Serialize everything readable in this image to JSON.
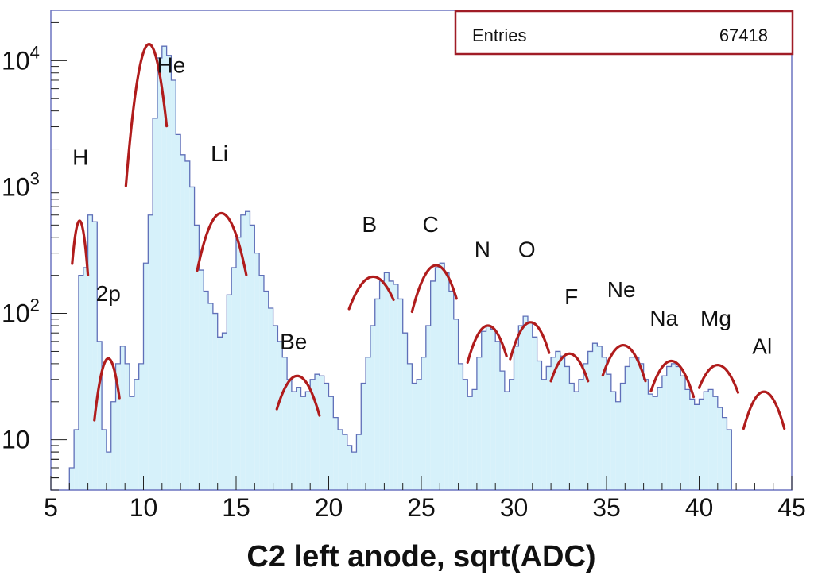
{
  "chart_data": {
    "type": "histogram",
    "title": "",
    "xlabel": "C2 left anode, sqrt(ADC)",
    "ylabel": "",
    "xlim": [
      5,
      45
    ],
    "ylim": [
      4,
      25000
    ],
    "yscale": "log",
    "grid": false,
    "legend": "none",
    "x_ticks": [
      5,
      10,
      15,
      20,
      25,
      30,
      35,
      40,
      45
    ],
    "x_tick_labels": [
      "5",
      "10",
      "15",
      "20",
      "25",
      "30",
      "35",
      "40",
      "45"
    ],
    "y_ticks": [
      10,
      100,
      1000,
      10000
    ],
    "y_tick_labels": [
      {
        "base": "10",
        "exp": ""
      },
      {
        "base": "10",
        "exp": "2"
      },
      {
        "base": "10",
        "exp": "3"
      },
      {
        "base": "10",
        "exp": "4"
      }
    ],
    "stats_box": {
      "label": "Entries",
      "value": "67418"
    },
    "colors": {
      "fill": "#d6f1fa",
      "histogram_line": "#5f6fb8",
      "fit": "#b01c1c",
      "stats_border": "#a01c26",
      "frame": "#6c74c0"
    },
    "histogram": {
      "bin_width": 0.25,
      "x_start": 6.0,
      "values": [
        6,
        12,
        200,
        230,
        600,
        530,
        60,
        12,
        8,
        20,
        40,
        55,
        40,
        22,
        30,
        40,
        250,
        600,
        3500,
        10500,
        13000,
        11000,
        7000,
        2600,
        1800,
        1600,
        1000,
        500,
        220,
        150,
        120,
        100,
        65,
        70,
        140,
        230,
        400,
        600,
        640,
        500,
        300,
        200,
        150,
        110,
        80,
        60,
        45,
        30,
        24,
        26,
        22,
        24,
        30,
        33,
        32,
        28,
        22,
        15,
        12,
        11,
        9,
        8,
        11,
        28,
        45,
        80,
        130,
        180,
        210,
        180,
        170,
        130,
        70,
        40,
        28,
        30,
        45,
        80,
        180,
        230,
        250,
        210,
        150,
        90,
        40,
        30,
        22,
        25,
        45,
        72,
        80,
        75,
        60,
        35,
        24,
        30,
        55,
        80,
        95,
        85,
        65,
        42,
        30,
        38,
        45,
        50,
        46,
        38,
        28,
        24,
        30,
        40,
        50,
        58,
        55,
        45,
        33,
        24,
        20,
        28,
        38,
        45,
        45,
        40,
        30,
        23,
        22,
        26,
        32,
        38,
        40,
        38,
        32,
        25,
        21,
        19,
        21,
        24,
        25,
        22,
        18,
        15,
        12
      ]
    },
    "fits": [
      {
        "species": "H",
        "mu": 6.55,
        "sigma": 0.32,
        "peak": 540,
        "x_from": 6.15,
        "x_to": 7.0
      },
      {
        "species": "2p",
        "mu": 8.1,
        "sigma": 0.5,
        "peak": 44,
        "x_from": 7.35,
        "x_to": 8.7
      },
      {
        "species": "He",
        "mu": 10.3,
        "sigma": 0.55,
        "peak": 13500,
        "x_from": 9.05,
        "x_to": 11.25
      },
      {
        "species": "Li",
        "mu": 14.2,
        "sigma": 0.9,
        "peak": 620,
        "x_from": 12.9,
        "x_to": 15.55
      },
      {
        "species": "Be",
        "mu": 18.3,
        "sigma": 1.0,
        "peak": 32,
        "x_from": 17.2,
        "x_to": 19.5
      },
      {
        "species": "B",
        "mu": 22.4,
        "sigma": 1.2,
        "peak": 195,
        "x_from": 21.1,
        "x_to": 23.5
      },
      {
        "species": "C",
        "mu": 25.8,
        "sigma": 1.0,
        "peak": 240,
        "x_from": 24.5,
        "x_to": 26.9
      },
      {
        "species": "N",
        "mu": 28.6,
        "sigma": 0.95,
        "peak": 80,
        "x_from": 27.5,
        "x_to": 29.6
      },
      {
        "species": "O",
        "mu": 30.9,
        "sigma": 0.95,
        "peak": 85,
        "x_from": 29.8,
        "x_to": 31.9
      },
      {
        "species": "F",
        "mu": 33.0,
        "sigma": 1.0,
        "peak": 48,
        "x_from": 32.0,
        "x_to": 34.0
      },
      {
        "species": "Ne",
        "mu": 35.9,
        "sigma": 1.05,
        "peak": 56,
        "x_from": 34.8,
        "x_to": 37.1
      },
      {
        "species": "Na",
        "mu": 38.5,
        "sigma": 1.05,
        "peak": 42,
        "x_from": 37.4,
        "x_to": 39.7
      },
      {
        "species": "Mg",
        "mu": 41.0,
        "sigma": 1.1,
        "peak": 39,
        "x_from": 40.0,
        "x_to": 42.1
      },
      {
        "species": "Al",
        "mu": 43.5,
        "sigma": 0.95,
        "peak": 24,
        "x_from": 42.4,
        "x_to": 44.6
      }
    ],
    "annotations": [
      {
        "text": "H",
        "x": 6.6,
        "y": 1500
      },
      {
        "text": "2p",
        "x": 8.1,
        "y": 125
      },
      {
        "text": "He",
        "x": 11.5,
        "y": 8000
      },
      {
        "text": "Li",
        "x": 14.1,
        "y": 1600
      },
      {
        "text": "Be",
        "x": 18.1,
        "y": 52
      },
      {
        "text": "B",
        "x": 22.2,
        "y": 440
      },
      {
        "text": "C",
        "x": 25.5,
        "y": 440
      },
      {
        "text": "N",
        "x": 28.3,
        "y": 280
      },
      {
        "text": "O",
        "x": 30.7,
        "y": 280
      },
      {
        "text": "F",
        "x": 33.1,
        "y": 118
      },
      {
        "text": "Ne",
        "x": 35.8,
        "y": 135
      },
      {
        "text": "Na",
        "x": 38.1,
        "y": 80
      },
      {
        "text": "Mg",
        "x": 40.9,
        "y": 80
      },
      {
        "text": "Al",
        "x": 43.4,
        "y": 48
      }
    ]
  }
}
